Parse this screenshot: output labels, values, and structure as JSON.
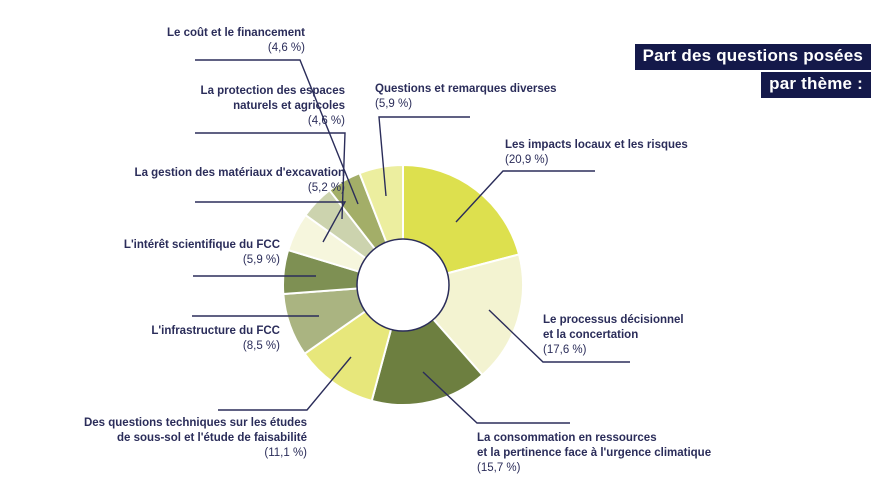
{
  "title": {
    "line1": "Part des questions posées",
    "line2": "par thème :"
  },
  "chart_data": {
    "type": "pie",
    "subtype": "donut",
    "title": "Part des questions posées par thème :",
    "unit": "%",
    "start_angle": "12 o'clock",
    "direction": "clockwise",
    "legend_position": "none (leader-line labels around chart)",
    "categories": [
      "Les impacts locaux et les risques",
      "Le processus décisionnel et la concertation",
      "La consommation en ressources et la pertinence face à l'urgence climatique",
      "Des questions techniques sur les études de sous-sol et l'étude de faisabilité",
      "L'infrastructure du FCC",
      "L'intérêt scientifique du FCC",
      "La gestion des matériaux d'excavation",
      "La protection des espaces naturels et agricoles",
      "Le coût et le financement",
      "Questions et remarques diverses"
    ],
    "values": [
      20.9,
      17.6,
      15.7,
      11.1,
      8.5,
      5.9,
      5.2,
      4.6,
      4.6,
      5.9
    ],
    "colors": [
      "#dde04e",
      "#f3f3d1",
      "#6d7f40",
      "#e7e77b",
      "#aab481",
      "#7e9053",
      "#f6f6dd",
      "#ccd3ae",
      "#a3ae68",
      "#ecee9f"
    ]
  },
  "labels": [
    {
      "id": "impacts",
      "name": "Les impacts locaux et les risques",
      "pct": "(20,9 %)"
    },
    {
      "id": "processus",
      "name": "Le processus décisionnel\net la concertation",
      "pct": "(17,6 %)"
    },
    {
      "id": "consommation",
      "name": "La consommation en ressources\net la pertinence face à l'urgence climatique",
      "pct": "(15,7 %)"
    },
    {
      "id": "techniques",
      "name": "Des questions techniques sur les études\nde sous-sol et l'étude de faisabilité",
      "pct": "(11,1 %)"
    },
    {
      "id": "infrastructure",
      "name": "L'infrastructure du FCC",
      "pct": "(8,5 %)"
    },
    {
      "id": "interet",
      "name": "L'intérêt scientifique du FCC",
      "pct": "(5,9 %)"
    },
    {
      "id": "gestion",
      "name": "La gestion des matériaux d'excavation",
      "pct": "(5,2 %)"
    },
    {
      "id": "protection",
      "name": "La protection des espaces\nnaturels et agricoles",
      "pct": "(4,6 %)"
    },
    {
      "id": "cout",
      "name": "Le coût et le financement",
      "pct": "(4,6 %)"
    },
    {
      "id": "diverses",
      "name": "Questions et remarques diverses",
      "pct": "(5,9 %)"
    }
  ],
  "colors": {
    "label_text": "#2b2d5a",
    "title_bg": "#14194a",
    "title_text": "#ffffff",
    "leader_line": "#2b2d5a",
    "donut_hole_stroke": "#2b2d5a",
    "background": "#ffffff"
  }
}
